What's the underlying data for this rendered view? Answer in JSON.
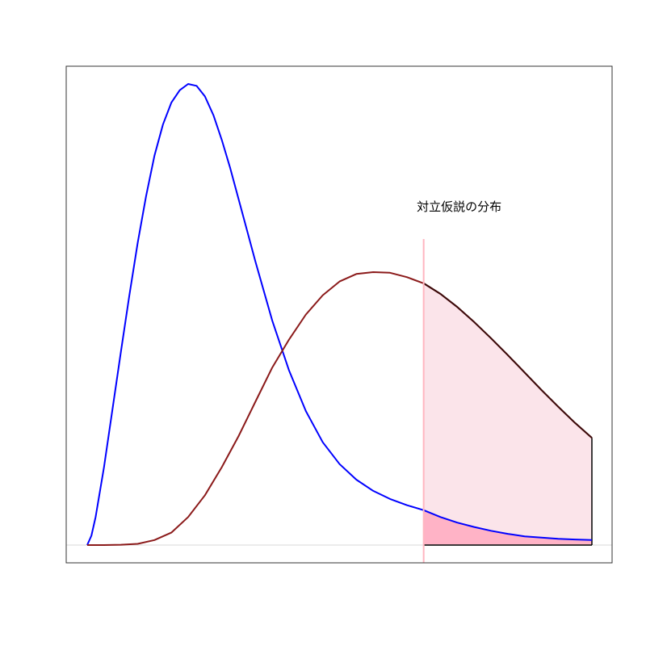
{
  "chart_data": {
    "type": "area",
    "title": "",
    "xlabel": "",
    "ylabel": "",
    "xlim": [
      0,
      6.25
    ],
    "ylim": [
      0,
      0.75
    ],
    "grid": false,
    "legend": "none",
    "annotations": [
      {
        "text": "対立仮説の分布"
      }
    ],
    "critical_value": 4.0,
    "series": [
      {
        "color": "#0000ff",
        "fill_color": "#ffb3c6",
        "x": [
          0.0,
          0.05,
          0.1,
          0.2,
          0.3,
          0.4,
          0.5,
          0.6,
          0.7,
          0.8,
          0.9,
          1.0,
          1.1,
          1.2,
          1.3,
          1.4,
          1.5,
          1.6,
          1.7,
          1.8,
          1.9,
          2.0,
          2.2,
          2.4,
          2.6,
          2.8,
          3.0,
          3.2,
          3.4,
          3.6,
          3.8,
          4.0,
          4.2,
          4.4,
          4.6,
          4.8,
          5.0,
          5.2,
          5.4,
          5.6,
          5.8,
          6.0
        ],
        "y": [
          0.0,
          0.015,
          0.045,
          0.125,
          0.218,
          0.31,
          0.4,
          0.485,
          0.56,
          0.625,
          0.675,
          0.71,
          0.73,
          0.74,
          0.737,
          0.72,
          0.69,
          0.65,
          0.605,
          0.555,
          0.505,
          0.455,
          0.36,
          0.28,
          0.215,
          0.165,
          0.13,
          0.105,
          0.087,
          0.074,
          0.064,
          0.056,
          0.045,
          0.036,
          0.029,
          0.023,
          0.018,
          0.014,
          0.012,
          0.01,
          0.009,
          0.008
        ]
      },
      {
        "color": "#8b1a1a",
        "fill_color": "#fbe4ea",
        "x": [
          0.0,
          0.2,
          0.4,
          0.6,
          0.8,
          1.0,
          1.2,
          1.4,
          1.6,
          1.8,
          2.0,
          2.2,
          2.4,
          2.6,
          2.8,
          3.0,
          3.2,
          3.4,
          3.6,
          3.8,
          4.0,
          4.2,
          4.4,
          4.6,
          4.8,
          5.0,
          5.2,
          5.4,
          5.6,
          5.8,
          6.0
        ],
        "y": [
          0.0,
          0.0,
          0.0005,
          0.002,
          0.008,
          0.02,
          0.045,
          0.08,
          0.125,
          0.175,
          0.23,
          0.285,
          0.33,
          0.37,
          0.401,
          0.423,
          0.435,
          0.438,
          0.437,
          0.43,
          0.42,
          0.403,
          0.382,
          0.358,
          0.332,
          0.305,
          0.277,
          0.249,
          0.222,
          0.196,
          0.172
        ]
      }
    ]
  }
}
